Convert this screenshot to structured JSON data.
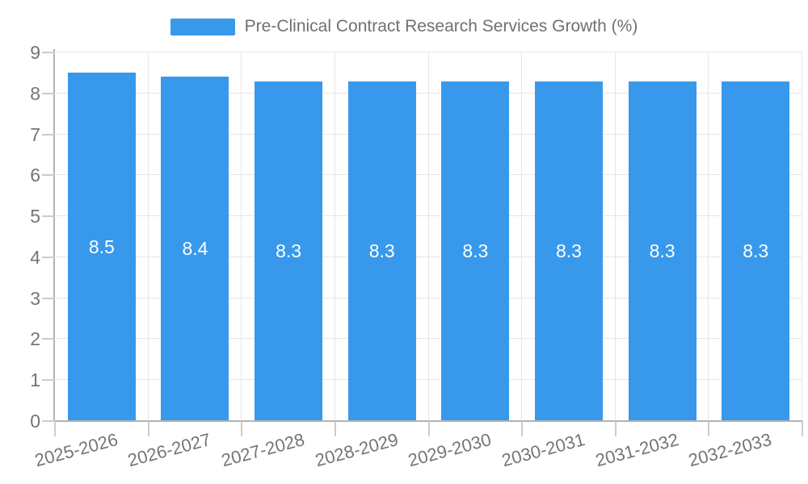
{
  "chart_data": {
    "type": "bar",
    "title": "Pre-Clinical Contract Research Services Growth (%)",
    "xlabel": "",
    "ylabel": "",
    "categories": [
      "2025-2026",
      "2026-2027",
      "2027-2028",
      "2028-2029",
      "2029-2030",
      "2030-2031",
      "2031-2032",
      "2032-2033"
    ],
    "values": [
      8.5,
      8.4,
      8.3,
      8.3,
      8.3,
      8.3,
      8.3,
      8.3
    ],
    "value_labels": [
      "8.5",
      "8.4",
      "8.3",
      "8.3",
      "8.3",
      "8.3",
      "8.3",
      "8.3"
    ],
    "ylim": [
      0,
      9
    ],
    "y_ticks": [
      "0",
      "1",
      "2",
      "3",
      "4",
      "5",
      "6",
      "7",
      "8",
      "9"
    ],
    "grid": true,
    "legend_position": "top",
    "colors": {
      "bar": "#3899EC",
      "grid_line": "#e6e6e6",
      "axis_line": "#b3b3b3",
      "tick_line": "#cccccc",
      "tick_label": "#757575",
      "legend_text": "#707070",
      "value_label": "#ffffff",
      "background": "#ffffff"
    }
  }
}
